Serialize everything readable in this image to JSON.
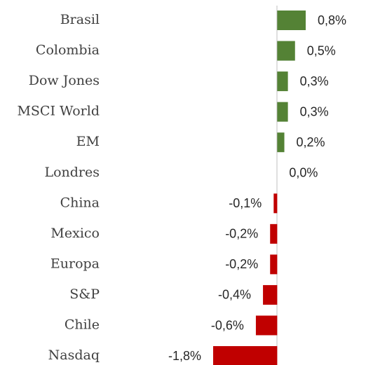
{
  "chart_data": {
    "type": "bar",
    "orientation": "horizontal",
    "categories": [
      "Brasil",
      "Colombia",
      "Dow Jones",
      "MSCI World",
      "EM",
      "Londres",
      "China",
      "Mexico",
      "Europa",
      "S&P",
      "Chile",
      "Nasdaq"
    ],
    "values": [
      0.8,
      0.5,
      0.3,
      0.3,
      0.2,
      0.0,
      -0.1,
      -0.2,
      -0.2,
      -0.4,
      -0.6,
      -1.8
    ],
    "value_labels": [
      "0,8%",
      "0,5%",
      "0,3%",
      "0,3%",
      "0,2%",
      "0,0%",
      "-0,1%",
      "-0,2%",
      "-0,2%",
      "-0,4%",
      "-0,6%",
      "-1,8%"
    ],
    "positive_color": "#548235",
    "negative_color": "#c00000"
  }
}
